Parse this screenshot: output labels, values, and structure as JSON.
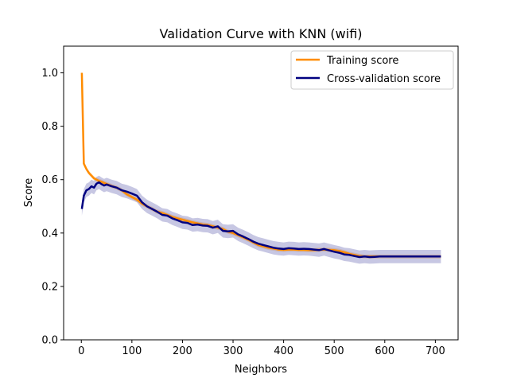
{
  "chart_data": {
    "type": "line",
    "title": "Validation Curve with KNN (wifi)",
    "xlabel": "Neighbors",
    "ylabel": "Score",
    "xlim": [
      -35,
      745
    ],
    "ylim": [
      0.0,
      1.1
    ],
    "xticks": [
      0,
      100,
      200,
      300,
      400,
      500,
      600,
      700
    ],
    "yticks": [
      0.0,
      0.2,
      0.4,
      0.6,
      0.8,
      1.0
    ],
    "grid": false,
    "legend_position": "top-right",
    "x": [
      1,
      5,
      10,
      15,
      20,
      25,
      30,
      35,
      40,
      45,
      50,
      60,
      70,
      80,
      90,
      100,
      110,
      120,
      130,
      140,
      150,
      160,
      170,
      180,
      190,
      200,
      210,
      220,
      230,
      240,
      250,
      260,
      270,
      280,
      290,
      300,
      310,
      320,
      330,
      340,
      350,
      360,
      370,
      380,
      390,
      400,
      410,
      420,
      430,
      440,
      450,
      460,
      470,
      480,
      490,
      500,
      510,
      520,
      530,
      540,
      550,
      560,
      570,
      580,
      590,
      600,
      620,
      640,
      660,
      680,
      700,
      711
    ],
    "series": [
      {
        "name": "Training score",
        "color": "#ff8c00",
        "values": [
          1.0,
          0.66,
          0.64,
          0.625,
          0.615,
          0.605,
          0.6,
          0.595,
          0.592,
          0.588,
          0.584,
          0.576,
          0.57,
          0.56,
          0.545,
          0.535,
          0.525,
          0.51,
          0.5,
          0.49,
          0.48,
          0.475,
          0.468,
          0.46,
          0.455,
          0.45,
          0.445,
          0.44,
          0.436,
          0.432,
          0.43,
          0.425,
          0.42,
          0.415,
          0.405,
          0.4,
          0.392,
          0.384,
          0.375,
          0.365,
          0.355,
          0.35,
          0.345,
          0.342,
          0.338,
          0.337,
          0.338,
          0.338,
          0.337,
          0.337,
          0.336,
          0.336,
          0.337,
          0.338,
          0.337,
          0.336,
          0.333,
          0.328,
          0.322,
          0.318,
          0.314,
          0.312,
          0.312,
          0.312,
          0.312,
          0.312,
          0.312,
          0.312,
          0.312,
          0.312,
          0.312,
          0.312
        ],
        "band": 0.008
      },
      {
        "name": "Cross-validation score",
        "color": "#000080",
        "values": [
          0.49,
          0.54,
          0.56,
          0.565,
          0.575,
          0.57,
          0.585,
          0.59,
          0.583,
          0.578,
          0.582,
          0.575,
          0.57,
          0.56,
          0.555,
          0.548,
          0.54,
          0.515,
          0.5,
          0.49,
          0.48,
          0.468,
          0.465,
          0.455,
          0.448,
          0.44,
          0.438,
          0.43,
          0.432,
          0.428,
          0.427,
          0.42,
          0.425,
          0.408,
          0.406,
          0.408,
          0.395,
          0.387,
          0.378,
          0.368,
          0.36,
          0.355,
          0.35,
          0.345,
          0.342,
          0.34,
          0.343,
          0.342,
          0.34,
          0.341,
          0.34,
          0.338,
          0.336,
          0.34,
          0.335,
          0.33,
          0.326,
          0.32,
          0.318,
          0.314,
          0.31,
          0.312,
          0.31,
          0.311,
          0.312,
          0.312,
          0.312,
          0.312,
          0.312,
          0.312,
          0.312,
          0.312
        ],
        "band": 0.025
      }
    ]
  }
}
